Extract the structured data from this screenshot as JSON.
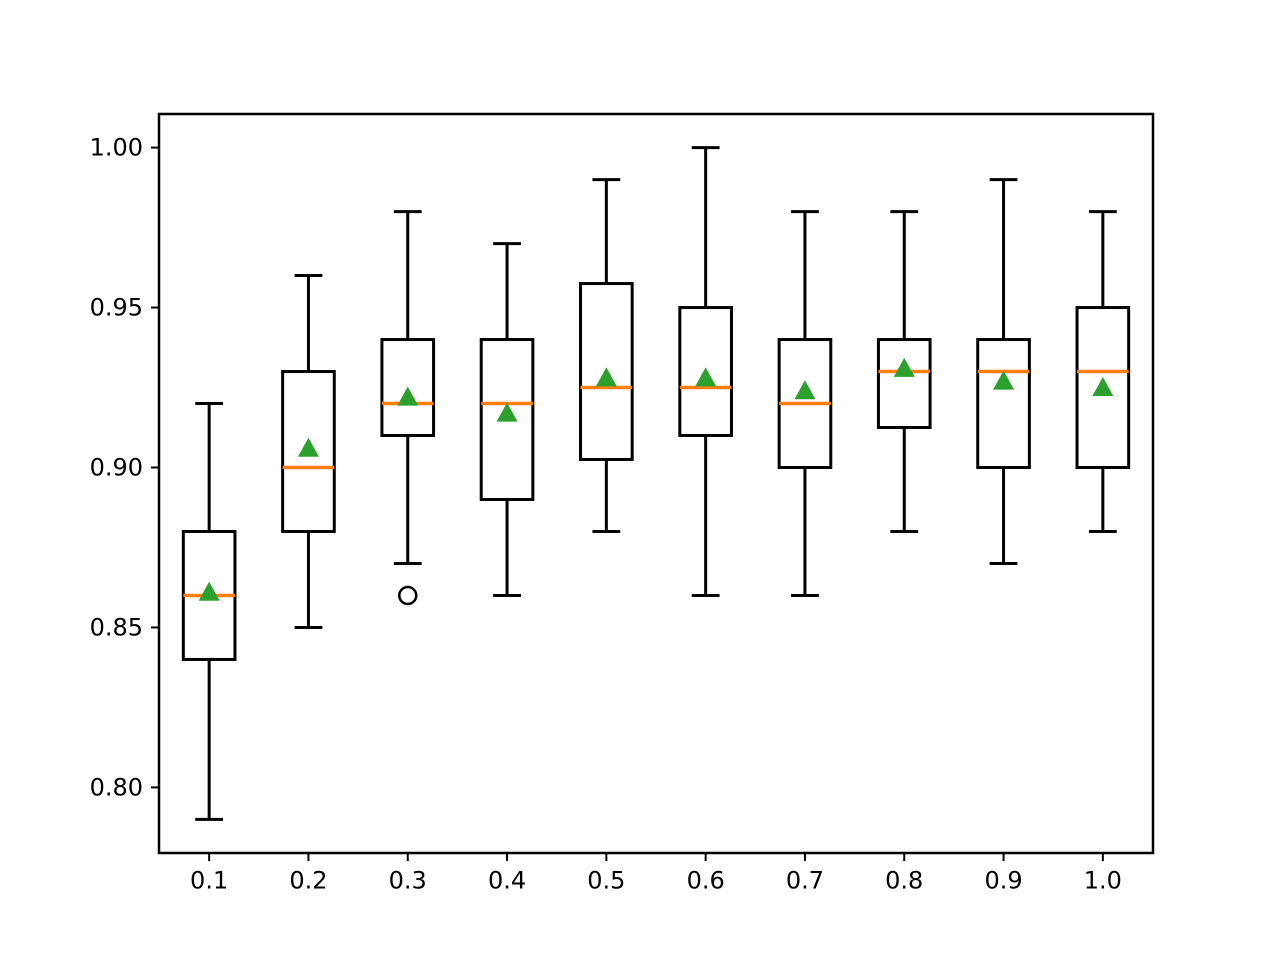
{
  "figure": {
    "title": "",
    "background": "#ffffff"
  },
  "chart_data": {
    "type": "boxplot",
    "title": "",
    "xlabel": "",
    "ylabel": "",
    "grid": "off",
    "legend": "off",
    "x_tick_labels": [
      "0.1",
      "0.2",
      "0.3",
      "0.4",
      "0.5",
      "0.6",
      "0.7",
      "0.8",
      "0.9",
      "1.0"
    ],
    "y_tick_labels": [
      "0.80",
      "0.85",
      "0.90",
      "0.95",
      "1.00"
    ],
    "x_ticks": [
      0.1,
      0.2,
      0.3,
      0.4,
      0.5,
      0.6,
      0.7,
      0.8,
      0.9,
      1.0
    ],
    "y_ticks": [
      0.8,
      0.85,
      0.9,
      0.95,
      1.0
    ],
    "xlim": [
      0.0495,
      1.0505
    ],
    "ylim": [
      0.7795,
      1.0105
    ],
    "box_width": 0.052,
    "cap_width": 0.028,
    "colors": {
      "box_line": "#000000",
      "whisker_line": "#000000",
      "median_line": "#ff7f0e",
      "mean_marker": "#2ca02c",
      "flier_edge": "#000000",
      "background": "#ffffff"
    },
    "boxes": [
      {
        "position": 0.1,
        "whislo": 0.79,
        "q1": 0.84,
        "med": 0.86,
        "q3": 0.88,
        "whishi": 0.92,
        "mean": 0.861,
        "fliers": []
      },
      {
        "position": 0.2,
        "whislo": 0.85,
        "q1": 0.88,
        "med": 0.9,
        "q3": 0.93,
        "whishi": 0.96,
        "mean": 0.906,
        "fliers": []
      },
      {
        "position": 0.3,
        "whislo": 0.87,
        "q1": 0.91,
        "med": 0.92,
        "q3": 0.94,
        "whishi": 0.98,
        "mean": 0.922,
        "fliers": [
          0.86
        ]
      },
      {
        "position": 0.4,
        "whislo": 0.86,
        "q1": 0.89,
        "med": 0.92,
        "q3": 0.94,
        "whishi": 0.97,
        "mean": 0.917,
        "fliers": []
      },
      {
        "position": 0.5,
        "whislo": 0.88,
        "q1": 0.9025,
        "med": 0.925,
        "q3": 0.9575,
        "whishi": 0.99,
        "mean": 0.928,
        "fliers": []
      },
      {
        "position": 0.6,
        "whislo": 0.86,
        "q1": 0.91,
        "med": 0.925,
        "q3": 0.95,
        "whishi": 1.0,
        "mean": 0.928,
        "fliers": []
      },
      {
        "position": 0.7,
        "whislo": 0.86,
        "q1": 0.9,
        "med": 0.92,
        "q3": 0.94,
        "whishi": 0.98,
        "mean": 0.924,
        "fliers": []
      },
      {
        "position": 0.8,
        "whislo": 0.88,
        "q1": 0.9125,
        "med": 0.93,
        "q3": 0.94,
        "whishi": 0.98,
        "mean": 0.931,
        "fliers": []
      },
      {
        "position": 0.9,
        "whislo": 0.87,
        "q1": 0.9,
        "med": 0.93,
        "q3": 0.94,
        "whishi": 0.99,
        "mean": 0.927,
        "fliers": []
      },
      {
        "position": 1.0,
        "whislo": 0.88,
        "q1": 0.9,
        "med": 0.93,
        "q3": 0.95,
        "whishi": 0.98,
        "mean": 0.925,
        "fliers": []
      }
    ]
  }
}
